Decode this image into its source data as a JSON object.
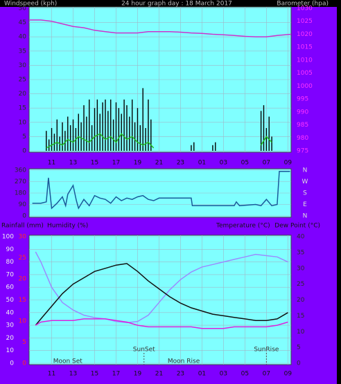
{
  "chart_data": [
    {
      "type": "line",
      "title": "24 hour graph day : 18 March 2017",
      "y_label": "Windspeed (kph)",
      "y2_label": "Barometer (hpa)",
      "xlim": [
        8.9,
        33.3
      ],
      "xticks": [
        11,
        13,
        15,
        17,
        19,
        21,
        23,
        {
          "value": 25,
          "label": "01"
        },
        {
          "value": 27,
          "label": "03"
        },
        {
          "value": 29,
          "label": "05"
        },
        {
          "value": 31,
          "label": "07"
        },
        {
          "value": 33,
          "label": "09"
        }
      ],
      "ylim": [
        0,
        50
      ],
      "yticks": [
        0,
        5,
        10,
        15,
        20,
        25,
        30,
        35,
        40,
        45,
        50
      ],
      "ytick_color": "#2a2a2a",
      "y2lim": [
        975,
        1030
      ],
      "y2ticks": [
        975,
        980,
        985,
        990,
        995,
        1000,
        1005,
        1010,
        1015,
        1020,
        1025,
        1030
      ],
      "y2tick_color": "#ff33ff",
      "grid": true,
      "series": [
        {
          "style": "bar",
          "color": "#000000",
          "x": [
            10.5,
            10.75,
            11,
            11.25,
            11.5,
            11.75,
            12,
            12.25,
            12.5,
            12.75,
            13,
            13.25,
            13.5,
            13.75,
            14,
            14.25,
            14.5,
            14.75,
            15,
            15.25,
            15.5,
            15.75,
            16,
            16.25,
            16.5,
            16.75,
            17,
            17.25,
            17.5,
            17.75,
            18,
            18.25,
            18.5,
            18.75,
            19,
            19.25,
            19.5,
            19.75,
            20,
            20.25,
            24,
            24.25,
            26,
            26.25,
            30.5,
            30.75,
            31,
            31.25,
            31.5
          ],
          "values": [
            7,
            4,
            8,
            6,
            11,
            5,
            10,
            7,
            12,
            9,
            11,
            8,
            13,
            10,
            16,
            12,
            18,
            9,
            15,
            18,
            13,
            17,
            18,
            14,
            18,
            11,
            17,
            15,
            13,
            18,
            16,
            12,
            18,
            10,
            15,
            9,
            22,
            8,
            18,
            11,
            2,
            3,
            2,
            3,
            14,
            16,
            8,
            12,
            5
          ]
        },
        {
          "style": "line",
          "color": "#22bb22",
          "x": [
            10.5,
            11,
            11.5,
            12,
            12.5,
            13,
            13.5,
            14,
            14.5,
            15,
            15.5,
            16,
            16.5,
            17,
            17.5,
            18,
            18.5,
            19,
            19.5,
            20,
            20.5,
            21,
            30.5,
            31,
            31.5
          ],
          "values": [
            1,
            2,
            3,
            2,
            4,
            3,
            5,
            4,
            3,
            5,
            6,
            4,
            5,
            3,
            6,
            4,
            5,
            3,
            2,
            3,
            1,
            null,
            2,
            5,
            3
          ]
        },
        {
          "style": "line",
          "axis": "y2",
          "color": "#cc33cc",
          "x": [
            8.9,
            10,
            11,
            12,
            13,
            14,
            15,
            16,
            17,
            18,
            19,
            20,
            21,
            22,
            23,
            24,
            25,
            26,
            27,
            28,
            29,
            30,
            31,
            32,
            33.3
          ],
          "values": [
            1025.5,
            1025.5,
            1025,
            1024,
            1023,
            1022.5,
            1021.5,
            1021,
            1020.5,
            1020.5,
            1020.5,
            1021,
            1021,
            1021,
            1020.8,
            1020.5,
            1020.3,
            1020,
            1019.8,
            1019.5,
            1019.2,
            1019,
            1019,
            1019.5,
            1020
          ]
        }
      ]
    },
    {
      "type": "line",
      "xlim": [
        8.9,
        33.3
      ],
      "ylim": [
        0,
        360
      ],
      "yticks": [
        0,
        90,
        180,
        270,
        360
      ],
      "ytick_color": "#2a2a2a",
      "y2lim": [
        0,
        360
      ],
      "y2ticks": [
        {
          "value": 0,
          "label": "N"
        },
        {
          "value": 90,
          "label": "E"
        },
        {
          "value": 180,
          "label": "S"
        },
        {
          "value": 270,
          "label": "W"
        },
        {
          "value": 360,
          "label": "N"
        }
      ],
      "y2tick_color": "#dddddd",
      "grid": true,
      "series": [
        {
          "style": "line",
          "color": "#1a5a9a",
          "x": [
            9.2,
            10,
            10.5,
            10.7,
            11,
            11.5,
            12,
            12.3,
            12.5,
            13,
            13.3,
            13.5,
            14,
            14.5,
            15,
            15.5,
            16,
            16.5,
            17,
            17.5,
            18,
            18.5,
            19,
            19.5,
            20,
            20.5,
            21,
            24,
            24.1,
            28,
            28.2,
            28.5,
            30,
            30.5,
            31,
            31.5,
            32,
            32.2,
            33.2
          ],
          "values": [
            100,
            100,
            110,
            300,
            60,
            100,
            150,
            80,
            170,
            240,
            120,
            60,
            130,
            80,
            160,
            140,
            130,
            100,
            150,
            120,
            140,
            130,
            150,
            160,
            130,
            120,
            140,
            140,
            80,
            80,
            110,
            80,
            90,
            80,
            130,
            80,
            90,
            350,
            350
          ]
        }
      ]
    },
    {
      "type": "line",
      "y3_label": "Rainfall (mm)",
      "xlim": [
        8.9,
        33.3
      ],
      "xticks": [
        11,
        13,
        15,
        17,
        19,
        21,
        23,
        {
          "value": 25,
          "label": "01"
        },
        {
          "value": 27,
          "label": "03"
        },
        {
          "value": 29,
          "label": "05"
        },
        {
          "value": 31,
          "label": "07"
        },
        {
          "value": 33,
          "label": "09"
        }
      ],
      "ylim": [
        0,
        100
      ],
      "yticks": [
        0,
        10,
        20,
        30,
        40,
        50,
        60,
        70,
        80,
        90,
        100
      ],
      "ytick_color": "#f0f0f0",
      "y2lim": [
        0,
        40
      ],
      "y2ticks": [
        0,
        5,
        10,
        15,
        20,
        25,
        30,
        35,
        40
      ],
      "y2tick_color": "#2a2a2a",
      "y3lim": [
        0,
        30
      ],
      "y3ticks": [
        0,
        5,
        10,
        15,
        20,
        25,
        30
      ],
      "y3tick_color": "#ff2a2a",
      "grid": true,
      "annotations": [
        {
          "text": "Moon Set",
          "x": 12.5
        },
        {
          "text": "SunSet",
          "x": 19.6
        },
        {
          "text": "Moon Rise",
          "x": 23.3
        },
        {
          "text": "SunRise",
          "x": 31
        }
      ],
      "series": [
        {
          "name": "Humidity (%)",
          "style": "line",
          "color": "#9a8cff",
          "x": [
            9.5,
            10,
            11,
            12,
            13,
            14,
            15,
            16,
            17,
            18,
            19,
            20,
            21,
            22,
            23,
            24,
            25,
            26,
            27,
            28,
            29,
            30,
            31,
            32,
            33
          ],
          "values": [
            88,
            80,
            60,
            48,
            42,
            38,
            36,
            35,
            33,
            32,
            33,
            38,
            48,
            58,
            66,
            72,
            76,
            78,
            80,
            82,
            84,
            86,
            85,
            84,
            80
          ]
        },
        {
          "name": "Temperature (°C)",
          "style": "line",
          "axis": "y2",
          "color": "#111111",
          "x": [
            9.5,
            10,
            11,
            12,
            13,
            14,
            15,
            16,
            17,
            18,
            19,
            20,
            21,
            22,
            23,
            24,
            25,
            26,
            27,
            28,
            29,
            30,
            31,
            32,
            33
          ],
          "values": [
            12,
            14,
            18,
            22,
            25,
            27,
            29,
            30,
            31,
            31.5,
            29,
            26,
            23.5,
            21,
            19,
            17.5,
            16.5,
            15.5,
            15,
            14.5,
            14,
            13.5,
            13.5,
            14,
            16
          ]
        },
        {
          "name": "Dew Point (°C)",
          "style": "line",
          "axis": "y2",
          "color": "#dd22dd",
          "x": [
            9.5,
            10,
            11,
            12,
            13,
            14,
            15,
            16,
            17,
            18,
            19,
            20,
            21,
            22,
            23,
            24,
            25,
            26,
            27,
            28,
            29,
            30,
            31,
            32,
            33
          ],
          "values": [
            12,
            13,
            13.5,
            13.5,
            13.5,
            14,
            14,
            14,
            13.5,
            13,
            12,
            11.5,
            11.5,
            11.5,
            11.5,
            11.5,
            11,
            11,
            11,
            11.5,
            11.5,
            11.5,
            11.5,
            12,
            13
          ]
        }
      ]
    }
  ]
}
